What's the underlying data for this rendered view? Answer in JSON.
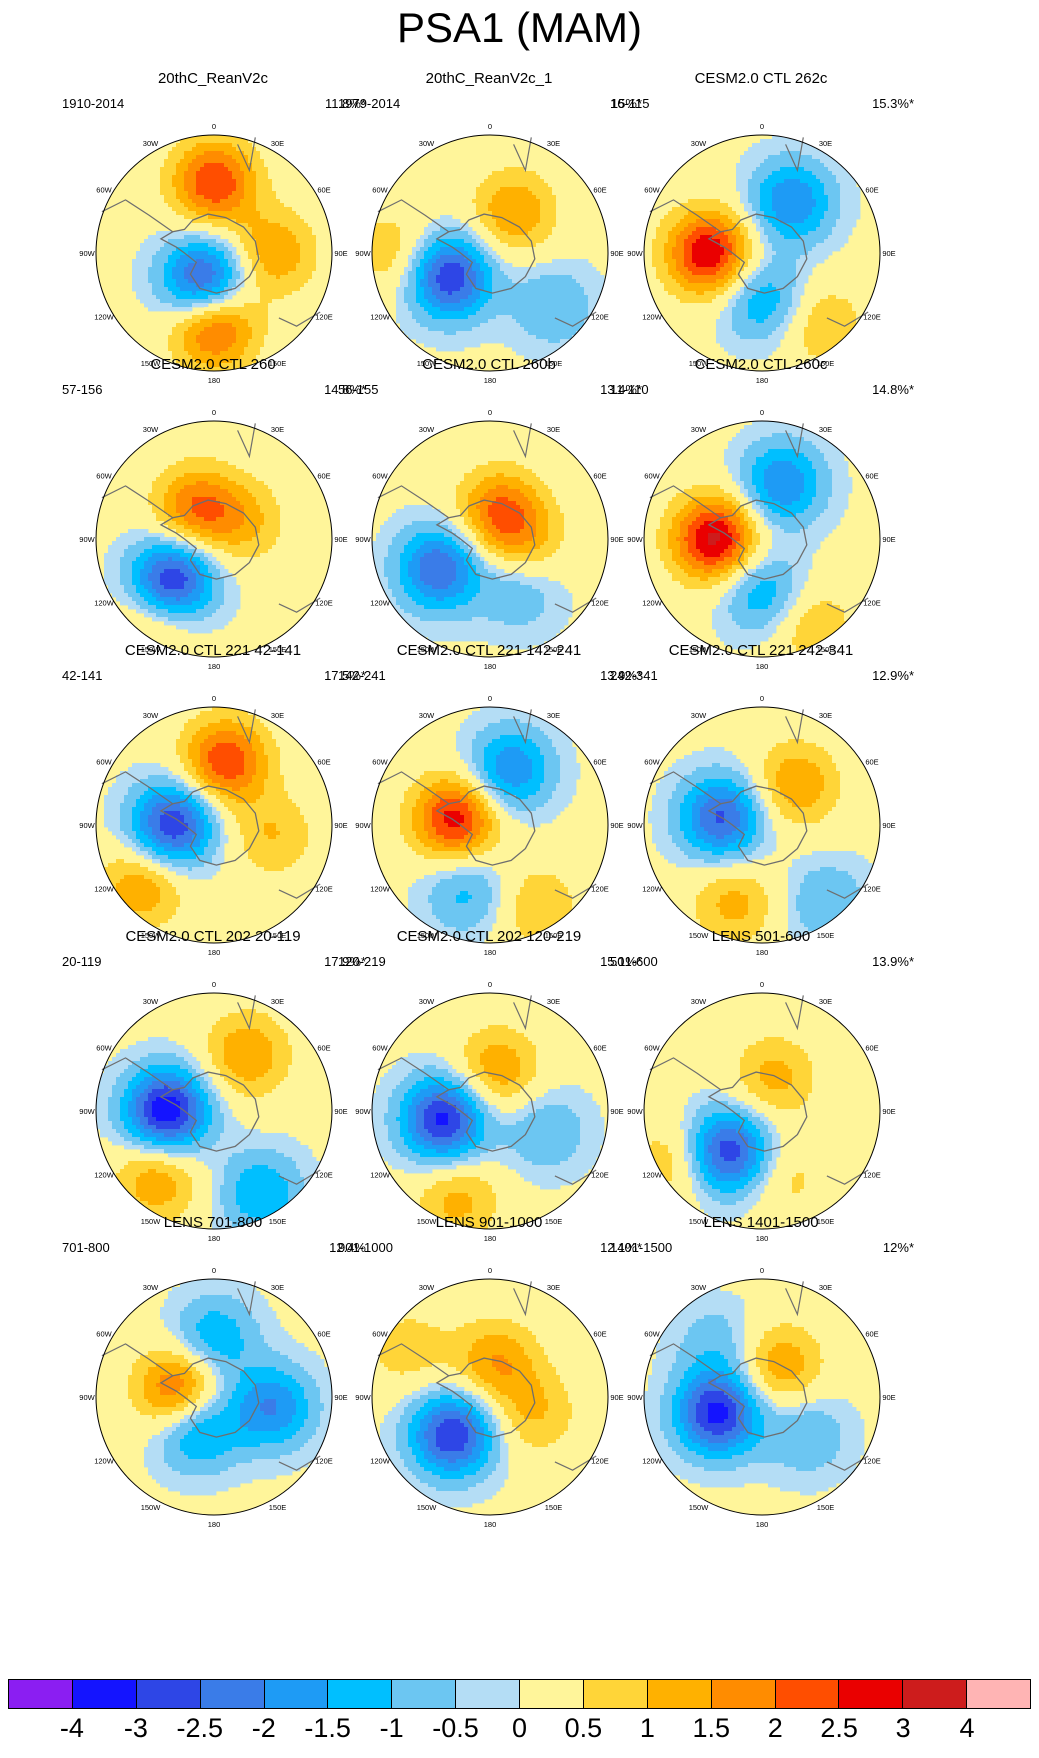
{
  "title": "PSA1 (MAM)",
  "longitude_labels": [
    "0",
    "30E",
    "60E",
    "90E",
    "120E",
    "150E",
    "180",
    "150W",
    "120W",
    "90W",
    "60W",
    "30W"
  ],
  "panels": [
    {
      "title": "20thC_ReanV2c",
      "years": "1910-2014",
      "percent": "11.8%*",
      "pattern": [
        {
          "a": 200,
          "r": 0.25,
          "v": -3
        },
        {
          "a": 0,
          "r": 0.6,
          "v": 2.5
        },
        {
          "a": 180,
          "r": 0.62,
          "v": 2.5
        },
        {
          "a": 90,
          "r": 0.5,
          "v": 1.5
        }
      ]
    },
    {
      "title": "20thC_ReanV2c_1",
      "years": "1979-2014",
      "percent": "15%*",
      "pattern": [
        {
          "a": 240,
          "r": 0.4,
          "v": -3
        },
        {
          "a": 30,
          "r": 0.4,
          "v": 1.5
        },
        {
          "a": 270,
          "r": 0.8,
          "v": 1
        },
        {
          "a": 130,
          "r": 0.7,
          "v": -1
        }
      ]
    },
    {
      "title": "CESM2.0 CTL 262c",
      "years": "16-115",
      "percent": "15.3%*",
      "pattern": [
        {
          "a": 270,
          "r": 0.45,
          "v": 3
        },
        {
          "a": 30,
          "r": 0.5,
          "v": -2
        },
        {
          "a": 180,
          "r": 0.4,
          "v": -1.5
        },
        {
          "a": 140,
          "r": 0.8,
          "v": 1
        }
      ]
    },
    {
      "title": "CESM2.0 CTL 260",
      "years": "57-156",
      "percent": "14.8%*",
      "pattern": [
        {
          "a": 225,
          "r": 0.5,
          "v": -3.2
        },
        {
          "a": 330,
          "r": 0.3,
          "v": 2
        },
        {
          "a": 60,
          "r": 0.3,
          "v": 1
        },
        {
          "a": 215,
          "r": 0.85,
          "v": 1
        }
      ]
    },
    {
      "title": "CESM2.0 CTL 260b",
      "years": "56-155",
      "percent": "13.4%*",
      "pattern": [
        {
          "a": 240,
          "r": 0.5,
          "v": -2.5
        },
        {
          "a": 20,
          "r": 0.25,
          "v": 2
        },
        {
          "a": 150,
          "r": 0.5,
          "v": -1
        },
        {
          "a": 100,
          "r": 0.3,
          "v": 1
        }
      ]
    },
    {
      "title": "CESM2.0 CTL 260c",
      "years": "11-110",
      "percent": "14.8%*",
      "pattern": [
        {
          "a": 270,
          "r": 0.4,
          "v": 3.2
        },
        {
          "a": 20,
          "r": 0.5,
          "v": -2
        },
        {
          "a": 180,
          "r": 0.45,
          "v": -1.5
        },
        {
          "a": 150,
          "r": 0.85,
          "v": 1
        }
      ]
    },
    {
      "title": "CESM2.0 CTL 221 42-141",
      "years": "42-141",
      "percent": "17.5%*",
      "pattern": [
        {
          "a": 270,
          "r": 0.35,
          "v": -3
        },
        {
          "a": 10,
          "r": 0.55,
          "v": 2.5
        },
        {
          "a": 230,
          "r": 0.8,
          "v": 1.5
        },
        {
          "a": 100,
          "r": 0.5,
          "v": 1
        }
      ]
    },
    {
      "title": "CESM2.0 CTL 221 142-241",
      "years": "142-241",
      "percent": "13.9%*",
      "pattern": [
        {
          "a": 280,
          "r": 0.3,
          "v": 2.8
        },
        {
          "a": 20,
          "r": 0.5,
          "v": -2
        },
        {
          "a": 200,
          "r": 0.6,
          "v": -1.2
        },
        {
          "a": 150,
          "r": 0.8,
          "v": 1
        }
      ]
    },
    {
      "title": "CESM2.0 CTL 221 242-341",
      "years": "242-341",
      "percent": "12.9%*",
      "pattern": [
        {
          "a": 280,
          "r": 0.35,
          "v": -2.6
        },
        {
          "a": 40,
          "r": 0.45,
          "v": 1.5
        },
        {
          "a": 200,
          "r": 0.7,
          "v": 1.2
        },
        {
          "a": 140,
          "r": 0.85,
          "v": -1
        }
      ]
    },
    {
      "title": "CESM2.0 CTL 202 20-119",
      "years": "20-119",
      "percent": "17.9%*",
      "pattern": [
        {
          "a": 270,
          "r": 0.4,
          "v": -3.5
        },
        {
          "a": 30,
          "r": 0.55,
          "v": 1.5
        },
        {
          "a": 220,
          "r": 0.75,
          "v": 1.5
        },
        {
          "a": 150,
          "r": 0.8,
          "v": -1.5
        }
      ]
    },
    {
      "title": "CESM2.0 CTL 202 120-219",
      "years": "120-219",
      "percent": "15.1%*",
      "pattern": [
        {
          "a": 260,
          "r": 0.4,
          "v": -3.2
        },
        {
          "a": 10,
          "r": 0.35,
          "v": 1.5
        },
        {
          "a": 200,
          "r": 0.8,
          "v": 1.2
        },
        {
          "a": 110,
          "r": 0.5,
          "v": -1
        }
      ]
    },
    {
      "title": "LENS 501-600",
      "years": "501-600",
      "percent": "13.9%*",
      "pattern": [
        {
          "a": 220,
          "r": 0.45,
          "v": -3
        },
        {
          "a": 20,
          "r": 0.3,
          "v": 1.2
        },
        {
          "a": 240,
          "r": 0.85,
          "v": 1
        },
        {
          "a": 160,
          "r": 0.6,
          "v": 0.7
        }
      ]
    },
    {
      "title": "LENS 701-800",
      "years": "701-800",
      "percent": "12.4%",
      "pattern": [
        {
          "a": 280,
          "r": 0.3,
          "v": 2.5
        },
        {
          "a": 210,
          "r": 0.3,
          "v": -2
        },
        {
          "a": 100,
          "r": 0.5,
          "v": -2
        },
        {
          "a": 0,
          "r": 0.5,
          "v": -1.5
        }
      ]
    },
    {
      "title": "LENS 901-1000",
      "years": "901-1000",
      "percent": "12.1%*",
      "pattern": [
        {
          "a": 225,
          "r": 0.45,
          "v": -3
        },
        {
          "a": 10,
          "r": 0.3,
          "v": 1.5
        },
        {
          "a": 110,
          "r": 0.4,
          "v": 1
        },
        {
          "a": 300,
          "r": 0.8,
          "v": 0.8
        }
      ]
    },
    {
      "title": "LENS 1401-1500",
      "years": "1401-1500",
      "percent": "12%*",
      "pattern": [
        {
          "a": 250,
          "r": 0.4,
          "v": -3.2
        },
        {
          "a": 30,
          "r": 0.3,
          "v": 1.5
        },
        {
          "a": 130,
          "r": 0.5,
          "v": -1
        },
        {
          "a": 320,
          "r": 0.6,
          "v": -0.8
        }
      ]
    }
  ],
  "colorbar": {
    "colors": [
      "#8b1ef2",
      "#1414ff",
      "#2e46e6",
      "#3a7ce8",
      "#1e9bf5",
      "#00bfff",
      "#6cc6f2",
      "#b4ddf5",
      "#fff59a",
      "#ffd538",
      "#ffb100",
      "#ff8c00",
      "#ff4e00",
      "#ea0000",
      "#cd1c1c",
      "#ffb4b4"
    ],
    "labels": [
      "-4",
      "-3",
      "-2.5",
      "-2",
      "-1.5",
      "-1",
      "-0.5",
      "0",
      "0.5",
      "1",
      "1.5",
      "2",
      "2.5",
      "3",
      "4"
    ]
  }
}
